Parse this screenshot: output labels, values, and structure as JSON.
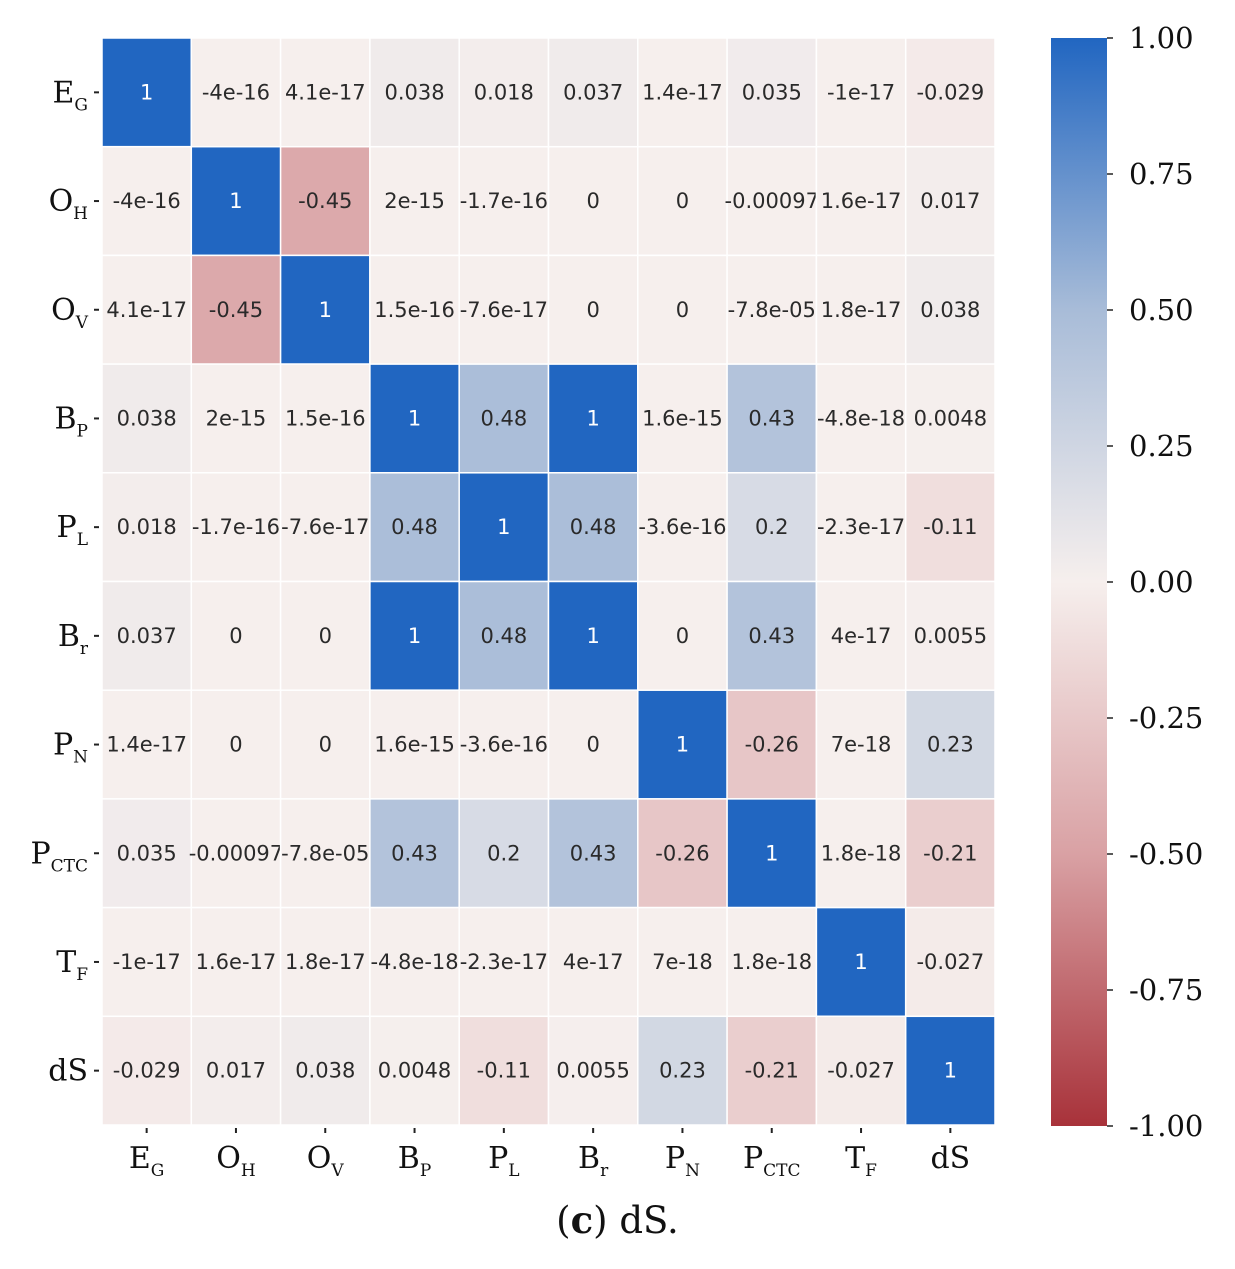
{
  "chart_data": {
    "type": "heatmap",
    "title": "",
    "labels": [
      {
        "main": "E",
        "sub": "G"
      },
      {
        "main": "O",
        "sub": "H"
      },
      {
        "main": "O",
        "sub": "V"
      },
      {
        "main": "B",
        "sub": "P"
      },
      {
        "main": "P",
        "sub": "L"
      },
      {
        "main": "B",
        "sub": "r"
      },
      {
        "main": "P",
        "sub": "N"
      },
      {
        "main": "P",
        "sub": "CTC"
      },
      {
        "main": "T",
        "sub": "F"
      },
      {
        "main": "dS",
        "sub": ""
      }
    ],
    "values": [
      [
        1,
        -4e-16,
        4.1e-17,
        0.038,
        0.018,
        0.037,
        1.4e-17,
        0.035,
        -1e-17,
        -0.029
      ],
      [
        -4e-16,
        1,
        -0.45,
        2e-15,
        -1.7e-16,
        0,
        0,
        -0.00097,
        1.6e-17,
        0.017
      ],
      [
        4.1e-17,
        -0.45,
        1,
        1.5e-16,
        -7.6e-17,
        0,
        0,
        -7.8e-05,
        1.8e-17,
        0.038
      ],
      [
        0.038,
        2e-15,
        1.5e-16,
        1,
        0.48,
        1,
        1.6e-15,
        0.43,
        -4.8e-18,
        0.0048
      ],
      [
        0.018,
        -1.7e-16,
        -7.6e-17,
        0.48,
        1,
        0.48,
        -3.6e-16,
        0.2,
        -2.3e-17,
        -0.11
      ],
      [
        0.037,
        0,
        0,
        1,
        0.48,
        1,
        0,
        0.43,
        4e-17,
        0.0055
      ],
      [
        1.4e-17,
        0,
        0,
        1.6e-15,
        -3.6e-16,
        0,
        1,
        -0.26,
        7e-18,
        0.23
      ],
      [
        0.035,
        -0.00097,
        -7.8e-05,
        0.43,
        0.2,
        0.43,
        -0.26,
        1,
        1.8e-18,
        -0.21
      ],
      [
        -1e-17,
        1.6e-17,
        1.8e-17,
        -4.8e-18,
        -2.3e-17,
        4e-17,
        7e-18,
        1.8e-18,
        1,
        -0.027
      ],
      [
        -0.029,
        0.017,
        0.038,
        0.0048,
        -0.11,
        0.0055,
        0.23,
        -0.21,
        -0.027,
        1
      ]
    ],
    "annotations": [
      [
        "1",
        "-4e-16",
        "4.1e-17",
        "0.038",
        "0.018",
        "0.037",
        "1.4e-17",
        "0.035",
        "-1e-17",
        "-0.029"
      ],
      [
        "-4e-16",
        "1",
        "-0.45",
        "2e-15",
        "-1.7e-16",
        "0",
        "0",
        "-0.00097",
        "1.6e-17",
        "0.017"
      ],
      [
        "4.1e-17",
        "-0.45",
        "1",
        "1.5e-16",
        "-7.6e-17",
        "0",
        "0",
        "-7.8e-05",
        "1.8e-17",
        "0.038"
      ],
      [
        "0.038",
        "2e-15",
        "1.5e-16",
        "1",
        "0.48",
        "1",
        "1.6e-15",
        "0.43",
        "-4.8e-18",
        "0.0048"
      ],
      [
        "0.018",
        "-1.7e-16",
        "-7.6e-17",
        "0.48",
        "1",
        "0.48",
        "-3.6e-16",
        "0.2",
        "-2.3e-17",
        "-0.11"
      ],
      [
        "0.037",
        "0",
        "0",
        "1",
        "0.48",
        "1",
        "0",
        "0.43",
        "4e-17",
        "0.0055"
      ],
      [
        "1.4e-17",
        "0",
        "0",
        "1.6e-15",
        "-3.6e-16",
        "0",
        "1",
        "-0.26",
        "7e-18",
        "0.23"
      ],
      [
        "0.035",
        "-0.00097",
        "-7.8e-05",
        "0.43",
        "0.2",
        "0.43",
        "-0.26",
        "1",
        "1.8e-18",
        "-0.21"
      ],
      [
        "-1e-17",
        "1.6e-17",
        "1.8e-17",
        "-4.8e-18",
        "-2.3e-17",
        "4e-17",
        "7e-18",
        "1.8e-18",
        "1",
        "-0.027"
      ],
      [
        "-0.029",
        "0.017",
        "0.038",
        "0.0048",
        "-0.11",
        "0.0055",
        "0.23",
        "-0.21",
        "-0.027",
        "1"
      ]
    ],
    "colorbar": {
      "vmin": -1.0,
      "vmax": 1.0,
      "ticks": [
        1.0,
        0.75,
        0.5,
        0.25,
        0.0,
        -0.25,
        -0.5,
        -0.75,
        -1.0
      ],
      "tick_labels": [
        "1.00",
        "0.75",
        "0.50",
        "0.25",
        "0.00",
        "-0.25",
        "-0.50",
        "-0.75",
        "-1.00"
      ]
    },
    "colors": {
      "positive": "#2166c1",
      "neutral": "#f6efed",
      "negative": "#a8323a",
      "mid_positive": "#a8bcd8",
      "mid_negative": "#d9a1a4"
    }
  },
  "caption": {
    "letter": "c",
    "text": "dS."
  }
}
